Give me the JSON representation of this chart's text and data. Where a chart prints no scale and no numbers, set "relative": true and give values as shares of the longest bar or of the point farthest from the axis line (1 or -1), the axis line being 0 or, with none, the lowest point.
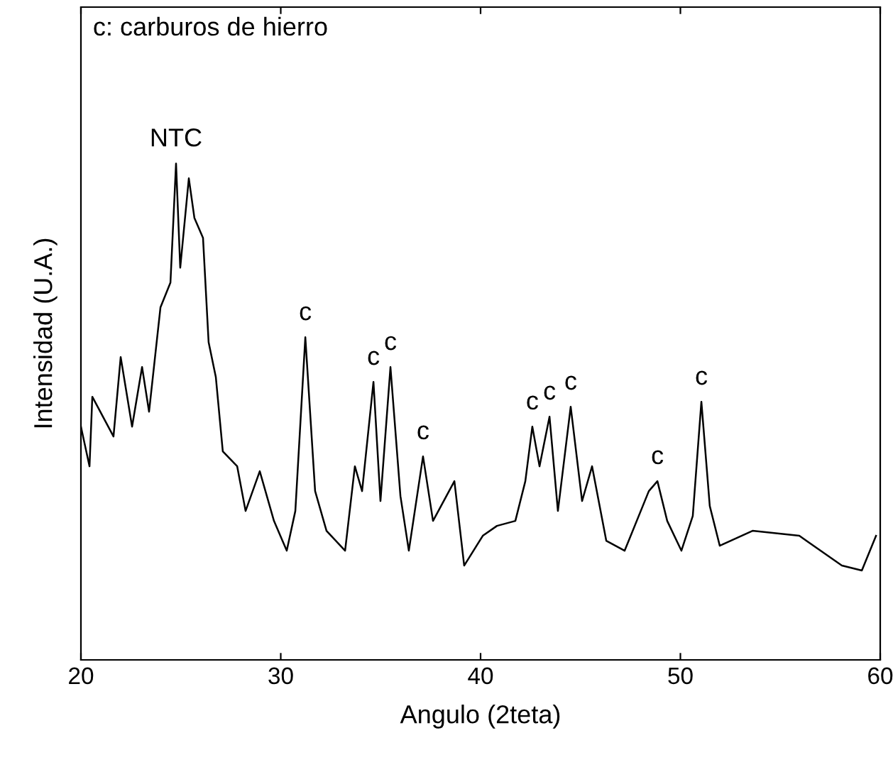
{
  "chart_data": {
    "type": "line",
    "relative": true,
    "xlabel": "Angulo (2teta)",
    "ylabel": "Intensidad (U.A.)",
    "xlim": [
      20,
      60
    ],
    "xticks": [
      20,
      30,
      40,
      50,
      60
    ],
    "grid": false,
    "legend": false,
    "tick_labels": "x",
    "marker": "none",
    "line_style": "solid",
    "series": [
      {
        "color": "#000000",
        "x": [
          20.0,
          20.43,
          20.57,
          21.63,
          21.99,
          22.56,
          23.06,
          23.41,
          23.98,
          24.48,
          24.76,
          24.97,
          25.4,
          25.68,
          26.11,
          26.39,
          26.75,
          27.1,
          27.82,
          28.24,
          28.95,
          29.66,
          30.3,
          30.73,
          31.23,
          31.72,
          32.29,
          33.22,
          33.71,
          34.07,
          34.64,
          34.99,
          35.49,
          35.99,
          36.41,
          37.12,
          37.62,
          38.69,
          39.18,
          40.11,
          40.82,
          41.74,
          42.24,
          42.59,
          42.95,
          43.45,
          43.87,
          44.51,
          45.08,
          45.58,
          46.29,
          47.21,
          48.42,
          48.85,
          49.34,
          50.05,
          50.62,
          51.05,
          51.47,
          51.97,
          53.61,
          55.95,
          58.08,
          59.08,
          59.79
        ],
        "values": [
          0.47,
          0.39,
          0.53,
          0.45,
          0.61,
          0.47,
          0.59,
          0.5,
          0.71,
          0.76,
          1.0,
          0.79,
          0.97,
          0.89,
          0.85,
          0.64,
          0.57,
          0.42,
          0.39,
          0.3,
          0.38,
          0.28,
          0.22,
          0.3,
          0.65,
          0.34,
          0.26,
          0.22,
          0.39,
          0.34,
          0.56,
          0.32,
          0.59,
          0.33,
          0.22,
          0.41,
          0.28,
          0.36,
          0.19,
          0.25,
          0.27,
          0.28,
          0.36,
          0.47,
          0.39,
          0.49,
          0.3,
          0.51,
          0.32,
          0.39,
          0.24,
          0.22,
          0.34,
          0.36,
          0.28,
          0.22,
          0.29,
          0.52,
          0.31,
          0.23,
          0.26,
          0.25,
          0.19,
          0.18,
          0.25
        ]
      }
    ],
    "annotations": [
      "c: carburos de hierro",
      {
        "text": "NTC",
        "x": 24.76,
        "y": 1.0
      },
      {
        "text": "c",
        "x": 31.23,
        "y": 0.65
      },
      {
        "text": "c",
        "x": 34.64,
        "y": 0.56
      },
      {
        "text": "c",
        "x": 35.49,
        "y": 0.59
      },
      {
        "text": "c",
        "x": 37.12,
        "y": 0.41
      },
      {
        "text": "c",
        "x": 42.59,
        "y": 0.47
      },
      {
        "text": "c",
        "x": 43.45,
        "y": 0.49
      },
      {
        "text": "c",
        "x": 44.51,
        "y": 0.51
      },
      {
        "text": "c",
        "x": 48.85,
        "y": 0.36
      },
      {
        "text": "c",
        "x": 51.05,
        "y": 0.52
      }
    ]
  }
}
